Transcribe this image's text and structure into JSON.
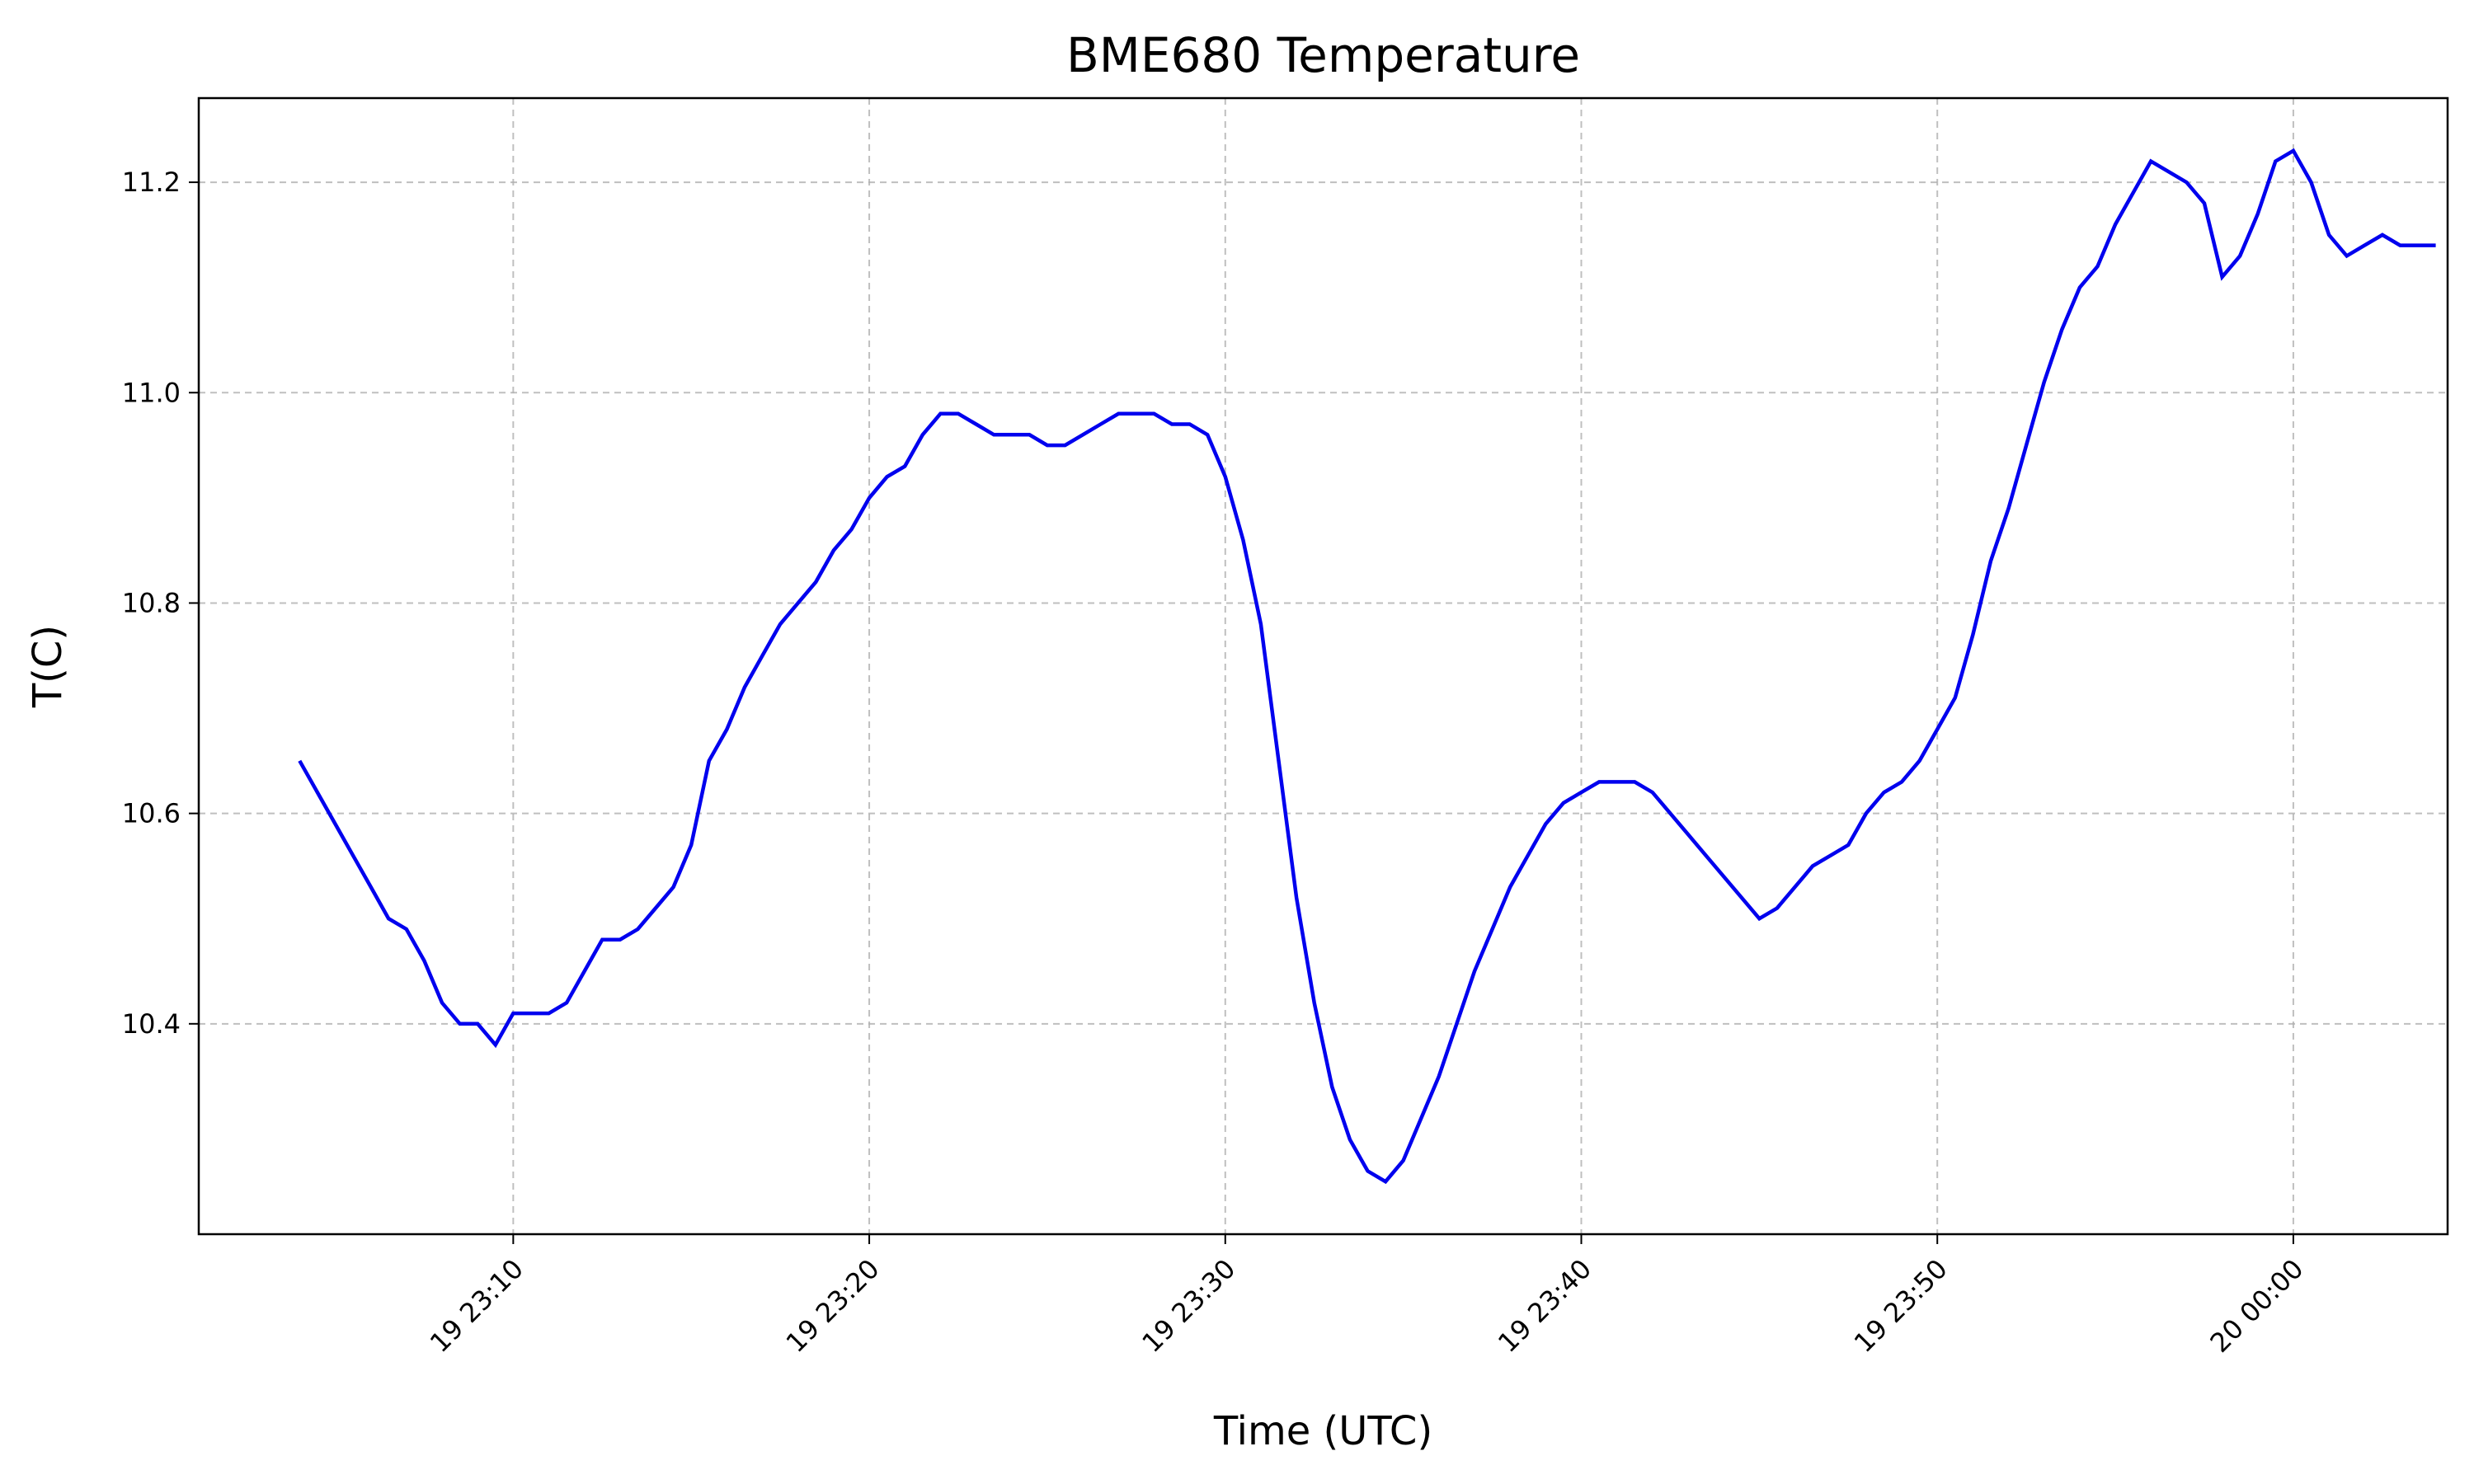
{
  "chart_data": {
    "type": "line",
    "title": "BME680 Temperature",
    "xlabel": "Time (UTC)",
    "ylabel": "T(C)",
    "xlim": [
      "19 23:01:10",
      "20 00:04:20"
    ],
    "ylim": [
      10.2,
      11.28
    ],
    "x_tick_labels": [
      {
        "t": "19 23:10:00",
        "label": "19 23:10"
      },
      {
        "t": "19 23:20:00",
        "label": "19 23:20"
      },
      {
        "t": "19 23:30:00",
        "label": "19 23:30"
      },
      {
        "t": "19 23:40:00",
        "label": "19 23:40"
      },
      {
        "t": "19 23:50:00",
        "label": "19 23:50"
      },
      {
        "t": "20 00:00:00",
        "label": "20 00:00"
      }
    ],
    "y_ticks": [
      {
        "v": 10.4,
        "label": "10.4"
      },
      {
        "v": 10.6,
        "label": "10.6"
      },
      {
        "v": 10.8,
        "label": "10.8"
      },
      {
        "v": 11.0,
        "label": "11.0"
      },
      {
        "v": 11.2,
        "label": "11.2"
      }
    ],
    "grid": true,
    "legend": "none",
    "series": [
      {
        "color": "#0000ee",
        "x": [
          "19 23:04:00",
          "19 23:04:30",
          "19 23:05:00",
          "19 23:05:30",
          "19 23:06:00",
          "19 23:06:30",
          "19 23:07:00",
          "19 23:07:30",
          "19 23:08:00",
          "19 23:08:30",
          "19 23:09:00",
          "19 23:09:30",
          "19 23:10:00",
          "19 23:10:30",
          "19 23:11:00",
          "19 23:11:30",
          "19 23:12:00",
          "19 23:12:30",
          "19 23:13:00",
          "19 23:13:30",
          "19 23:14:00",
          "19 23:14:30",
          "19 23:15:00",
          "19 23:15:30",
          "19 23:16:00",
          "19 23:16:30",
          "19 23:17:00",
          "19 23:17:30",
          "19 23:18:00",
          "19 23:18:30",
          "19 23:19:00",
          "19 23:19:30",
          "19 23:20:00",
          "19 23:20:30",
          "19 23:21:00",
          "19 23:21:30",
          "19 23:22:00",
          "19 23:22:30",
          "19 23:23:00",
          "19 23:23:30",
          "19 23:24:00",
          "19 23:24:30",
          "19 23:25:00",
          "19 23:25:30",
          "19 23:26:00",
          "19 23:26:30",
          "19 23:27:00",
          "19 23:27:30",
          "19 23:28:00",
          "19 23:28:30",
          "19 23:29:00",
          "19 23:29:30",
          "19 23:30:00",
          "19 23:30:30",
          "19 23:31:00",
          "19 23:31:30",
          "19 23:32:00",
          "19 23:32:30",
          "19 23:33:00",
          "19 23:33:30",
          "19 23:34:00",
          "19 23:34:30",
          "19 23:35:00",
          "19 23:35:30",
          "19 23:36:00",
          "19 23:36:30",
          "19 23:37:00",
          "19 23:37:30",
          "19 23:38:00",
          "19 23:38:30",
          "19 23:39:00",
          "19 23:39:30",
          "19 23:40:00",
          "19 23:40:30",
          "19 23:41:00",
          "19 23:41:30",
          "19 23:42:00",
          "19 23:42:30",
          "19 23:43:00",
          "19 23:43:30",
          "19 23:44:00",
          "19 23:44:30",
          "19 23:45:00",
          "19 23:45:30",
          "19 23:46:00",
          "19 23:46:30",
          "19 23:47:00",
          "19 23:47:30",
          "19 23:48:00",
          "19 23:48:30",
          "19 23:49:00",
          "19 23:49:30",
          "19 23:50:00",
          "19 23:50:30",
          "19 23:51:00",
          "19 23:51:30",
          "19 23:52:00",
          "19 23:52:30",
          "19 23:53:00",
          "19 23:53:30",
          "19 23:54:00",
          "19 23:54:30",
          "19 23:55:00",
          "19 23:55:30",
          "19 23:56:00",
          "19 23:56:30",
          "19 23:57:00",
          "19 23:57:30",
          "19 23:58:00",
          "19 23:58:30",
          "19 23:59:00",
          "19 23:59:30",
          "20 00:00:00",
          "20 00:00:30",
          "20 00:01:00",
          "20 00:01:30",
          "20 00:02:00",
          "20 00:02:30",
          "20 00:03:00",
          "20 00:03:30",
          "20 00:04:00"
        ],
        "y": [
          10.65,
          10.62,
          10.59,
          10.56,
          10.53,
          10.5,
          10.49,
          10.46,
          10.42,
          10.4,
          10.4,
          10.38,
          10.41,
          10.41,
          10.41,
          10.42,
          10.45,
          10.48,
          10.48,
          10.49,
          10.51,
          10.53,
          10.57,
          10.65,
          10.68,
          10.72,
          10.75,
          10.78,
          10.8,
          10.82,
          10.85,
          10.87,
          10.9,
          10.92,
          10.93,
          10.96,
          10.98,
          10.98,
          10.97,
          10.96,
          10.96,
          10.96,
          10.95,
          10.95,
          10.96,
          10.97,
          10.98,
          10.98,
          10.98,
          10.97,
          10.97,
          10.96,
          10.92,
          10.86,
          10.78,
          10.65,
          10.52,
          10.42,
          10.34,
          10.29,
          10.26,
          10.25,
          10.27,
          10.31,
          10.35,
          10.4,
          10.45,
          10.49,
          10.53,
          10.56,
          10.59,
          10.61,
          10.62,
          10.63,
          10.63,
          10.63,
          10.62,
          10.6,
          10.58,
          10.56,
          10.54,
          10.52,
          10.5,
          10.51,
          10.53,
          10.55,
          10.56,
          10.57,
          10.6,
          10.62,
          10.63,
          10.65,
          10.68,
          10.71,
          10.77,
          10.84,
          10.89,
          10.95,
          11.01,
          11.06,
          11.1,
          11.12,
          11.16,
          11.19,
          11.22,
          11.21,
          11.2,
          11.18,
          11.11,
          11.13,
          11.17,
          11.22,
          11.23,
          11.2,
          11.15,
          11.13,
          11.14,
          11.15,
          11.14,
          11.14,
          11.14
        ]
      }
    ]
  }
}
